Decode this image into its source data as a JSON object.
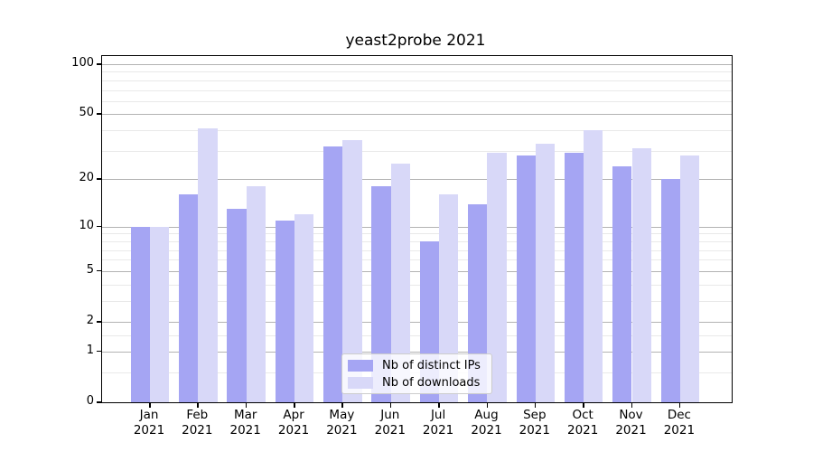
{
  "chart_data": {
    "type": "bar",
    "title": "yeast2probe 2021",
    "scale": "log(1+x)",
    "categories": [
      "Jan",
      "Feb",
      "Mar",
      "Apr",
      "May",
      "Jun",
      "Jul",
      "Aug",
      "Sep",
      "Oct",
      "Nov",
      "Dec"
    ],
    "year": "2021",
    "series": [
      {
        "name": "Nb of distinct IPs",
        "color": "#a5a5f3",
        "values": [
          10,
          16,
          13,
          11,
          32,
          18,
          8,
          14,
          28,
          29,
          24,
          20
        ]
      },
      {
        "name": "Nb of downloads",
        "color": "#d8d8f8",
        "values": [
          10,
          41,
          18,
          12,
          35,
          25,
          16,
          29,
          33,
          40,
          31,
          28
        ]
      }
    ],
    "xlabel": "",
    "ylabel": "",
    "y_major_ticks": [
      0,
      1,
      2,
      5,
      10,
      20,
      50,
      100
    ],
    "y_minor_ticks": [
      0.5,
      1.5,
      3,
      4,
      6,
      7,
      8,
      9,
      30,
      40,
      60,
      70,
      80,
      90
    ],
    "ylim": [
      0,
      112
    ],
    "grid": "horizontal",
    "legend_position": "lower center inside"
  }
}
